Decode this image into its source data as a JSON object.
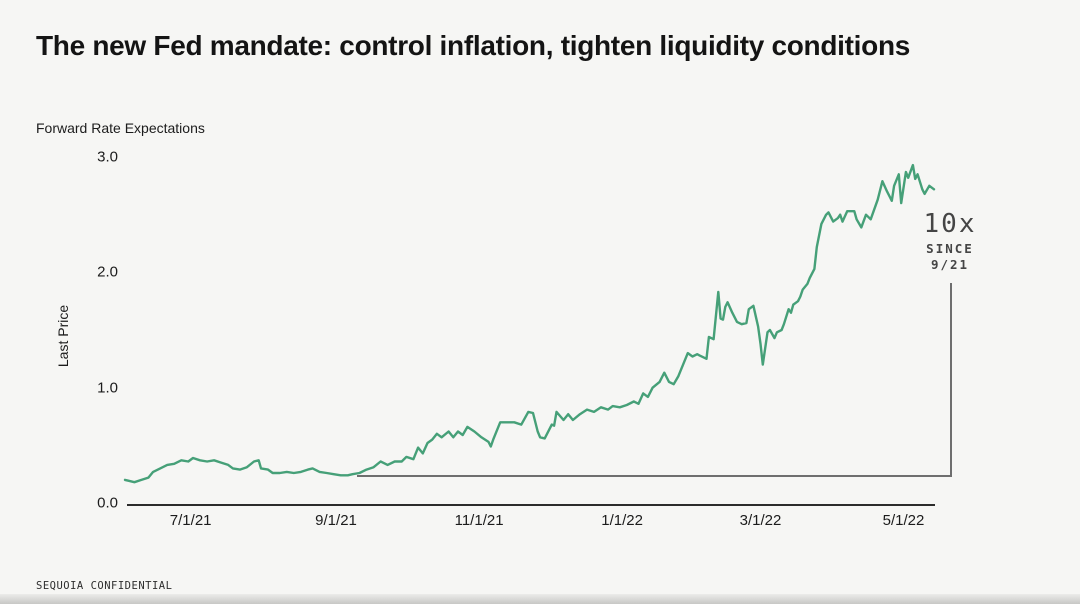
{
  "slide": {
    "title": "The new Fed mandate: control inflation, tighten liquidity conditions",
    "footer": "SEQUOIA CONFIDENTIAL",
    "background_color": "#f6f6f4"
  },
  "chart_data": {
    "type": "line",
    "title": "Forward Rate Expectations",
    "ylabel": "Last Price",
    "xlabel": "",
    "ylim": [
      0,
      3
    ],
    "yticks": [
      {
        "value": 0,
        "label": "0.0"
      },
      {
        "value": 1,
        "label": "1.0"
      },
      {
        "value": 2,
        "label": "2.0"
      },
      {
        "value": 3,
        "label": "3.0"
      }
    ],
    "x_unit": "days since 2021-06-01",
    "xlim": [
      2,
      347
    ],
    "xticks": [
      {
        "day": 30,
        "label": "7/1/21"
      },
      {
        "day": 92,
        "label": "9/1/21"
      },
      {
        "day": 153,
        "label": "11/1/21"
      },
      {
        "day": 214,
        "label": "1/1/22"
      },
      {
        "day": 273,
        "label": "3/1/22"
      },
      {
        "day": 334,
        "label": "5/1/22"
      }
    ],
    "grid": false,
    "legend": "none",
    "line_color": "#46a078",
    "annotation": {
      "headline": "10x",
      "sub1": "SINCE",
      "sub2": "9/21",
      "bracket": {
        "from_day": 101,
        "to_day": 354,
        "level": 0.24,
        "top_value": 1.9
      }
    },
    "series": [
      {
        "name": "Forward Rate Expectations",
        "points": [
          [
            2,
            0.2
          ],
          [
            6,
            0.18
          ],
          [
            9,
            0.2
          ],
          [
            12,
            0.22
          ],
          [
            14,
            0.27
          ],
          [
            17,
            0.3
          ],
          [
            20,
            0.33
          ],
          [
            23,
            0.34
          ],
          [
            26,
            0.37
          ],
          [
            29,
            0.36
          ],
          [
            31,
            0.39
          ],
          [
            34,
            0.37
          ],
          [
            37,
            0.36
          ],
          [
            40,
            0.37
          ],
          [
            43,
            0.35
          ],
          [
            46,
            0.33
          ],
          [
            48,
            0.3
          ],
          [
            51,
            0.29
          ],
          [
            54,
            0.31
          ],
          [
            57,
            0.36
          ],
          [
            59,
            0.37
          ],
          [
            60,
            0.3
          ],
          [
            63,
            0.29
          ],
          [
            65,
            0.26
          ],
          [
            68,
            0.26
          ],
          [
            71,
            0.27
          ],
          [
            74,
            0.26
          ],
          [
            77,
            0.27
          ],
          [
            80,
            0.29
          ],
          [
            82,
            0.3
          ],
          [
            85,
            0.27
          ],
          [
            88,
            0.26
          ],
          [
            91,
            0.25
          ],
          [
            94,
            0.24
          ],
          [
            97,
            0.24
          ],
          [
            99,
            0.25
          ],
          [
            102,
            0.26
          ],
          [
            105,
            0.29
          ],
          [
            108,
            0.31
          ],
          [
            111,
            0.36
          ],
          [
            114,
            0.33
          ],
          [
            117,
            0.36
          ],
          [
            120,
            0.36
          ],
          [
            122,
            0.4
          ],
          [
            125,
            0.38
          ],
          [
            127,
            0.48
          ],
          [
            129,
            0.43
          ],
          [
            131,
            0.52
          ],
          [
            133,
            0.55
          ],
          [
            135,
            0.6
          ],
          [
            137,
            0.57
          ],
          [
            140,
            0.62
          ],
          [
            142,
            0.57
          ],
          [
            144,
            0.62
          ],
          [
            146,
            0.59
          ],
          [
            148,
            0.66
          ],
          [
            151,
            0.62
          ],
          [
            154,
            0.57
          ],
          [
            157,
            0.53
          ],
          [
            158,
            0.49
          ],
          [
            159,
            0.55
          ],
          [
            162,
            0.7
          ],
          [
            165,
            0.7
          ],
          [
            168,
            0.7
          ],
          [
            171,
            0.68
          ],
          [
            174,
            0.79
          ],
          [
            176,
            0.78
          ],
          [
            178,
            0.62
          ],
          [
            179,
            0.57
          ],
          [
            181,
            0.56
          ],
          [
            184,
            0.68
          ],
          [
            185,
            0.67
          ],
          [
            186,
            0.79
          ],
          [
            189,
            0.72
          ],
          [
            191,
            0.77
          ],
          [
            193,
            0.72
          ],
          [
            196,
            0.77
          ],
          [
            199,
            0.81
          ],
          [
            202,
            0.79
          ],
          [
            205,
            0.83
          ],
          [
            208,
            0.81
          ],
          [
            210,
            0.84
          ],
          [
            213,
            0.83
          ],
          [
            216,
            0.85
          ],
          [
            219,
            0.88
          ],
          [
            221,
            0.86
          ],
          [
            223,
            0.95
          ],
          [
            225,
            0.92
          ],
          [
            227,
            1.0
          ],
          [
            230,
            1.05
          ],
          [
            232,
            1.13
          ],
          [
            234,
            1.05
          ],
          [
            236,
            1.03
          ],
          [
            238,
            1.1
          ],
          [
            240,
            1.2
          ],
          [
            242,
            1.3
          ],
          [
            244,
            1.27
          ],
          [
            246,
            1.29
          ],
          [
            247,
            1.28
          ],
          [
            250,
            1.25
          ],
          [
            251,
            1.44
          ],
          [
            253,
            1.42
          ],
          [
            255,
            1.83
          ],
          [
            256,
            1.6
          ],
          [
            257,
            1.59
          ],
          [
            258,
            1.7
          ],
          [
            259,
            1.74
          ],
          [
            261,
            1.65
          ],
          [
            263,
            1.57
          ],
          [
            265,
            1.55
          ],
          [
            267,
            1.56
          ],
          [
            268,
            1.68
          ],
          [
            270,
            1.71
          ],
          [
            272,
            1.53
          ],
          [
            273,
            1.38
          ],
          [
            274,
            1.2
          ],
          [
            276,
            1.48
          ],
          [
            277,
            1.5
          ],
          [
            279,
            1.43
          ],
          [
            280,
            1.48
          ],
          [
            282,
            1.5
          ],
          [
            283,
            1.55
          ],
          [
            285,
            1.68
          ],
          [
            286,
            1.65
          ],
          [
            287,
            1.72
          ],
          [
            289,
            1.75
          ],
          [
            290,
            1.79
          ],
          [
            291,
            1.85
          ],
          [
            293,
            1.9
          ],
          [
            294,
            1.95
          ],
          [
            296,
            2.03
          ],
          [
            297,
            2.22
          ],
          [
            299,
            2.42
          ],
          [
            301,
            2.5
          ],
          [
            302,
            2.52
          ],
          [
            304,
            2.44
          ],
          [
            306,
            2.47
          ],
          [
            307,
            2.5
          ],
          [
            308,
            2.44
          ],
          [
            310,
            2.53
          ],
          [
            313,
            2.53
          ],
          [
            314,
            2.46
          ],
          [
            316,
            2.39
          ],
          [
            318,
            2.5
          ],
          [
            320,
            2.46
          ],
          [
            323,
            2.63
          ],
          [
            325,
            2.79
          ],
          [
            327,
            2.7
          ],
          [
            329,
            2.62
          ],
          [
            330,
            2.75
          ],
          [
            332,
            2.85
          ],
          [
            333,
            2.6
          ],
          [
            335,
            2.87
          ],
          [
            336,
            2.82
          ],
          [
            338,
            2.93
          ],
          [
            339,
            2.81
          ],
          [
            340,
            2.85
          ],
          [
            342,
            2.72
          ],
          [
            343,
            2.68
          ],
          [
            345,
            2.75
          ],
          [
            347,
            2.72
          ]
        ]
      }
    ]
  }
}
